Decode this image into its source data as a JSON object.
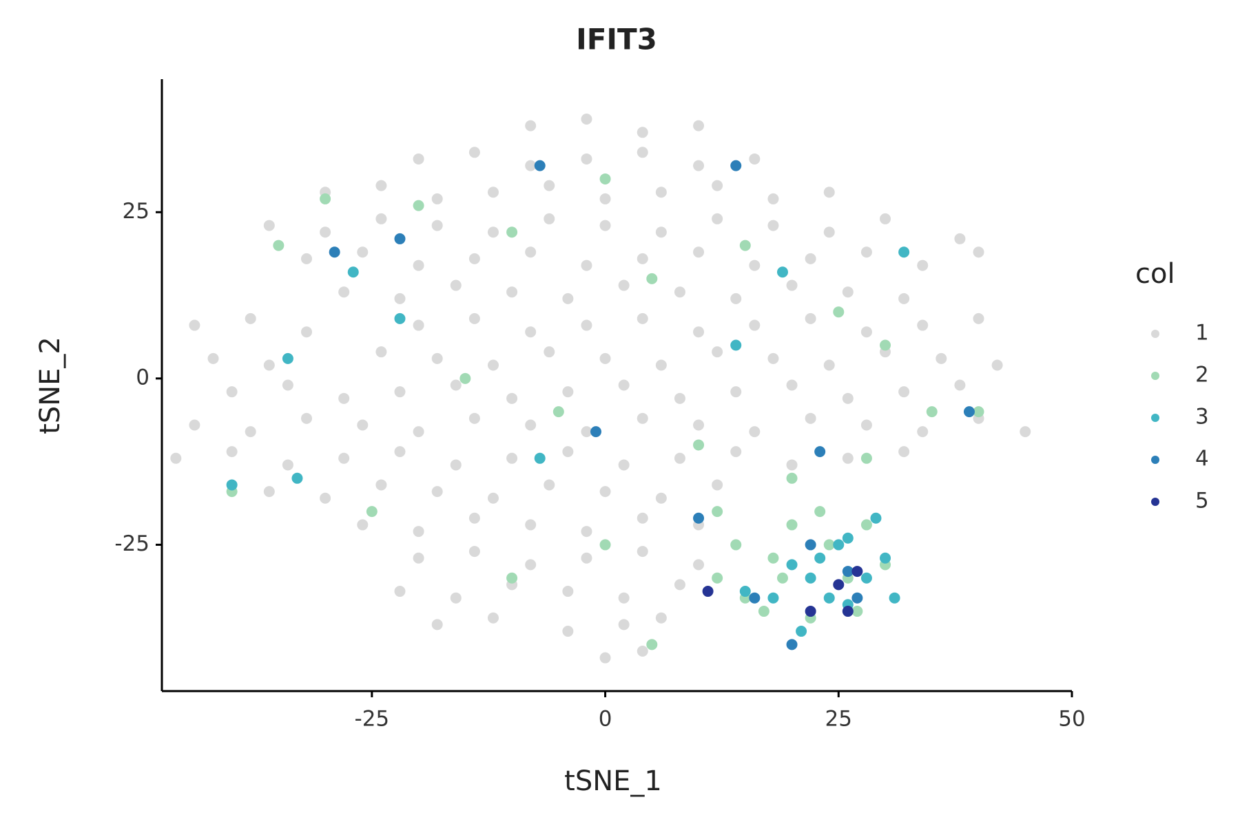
{
  "chart_data": {
    "type": "scatter",
    "title": "IFIT3",
    "x_label": "tSNE_1",
    "y_label": "tSNE_2",
    "legend_title": "col",
    "legend": "right",
    "xlim": [
      -47.5,
      50
    ],
    "ylim": [
      -47,
      45
    ],
    "xticks": [
      -25,
      0,
      25,
      50
    ],
    "yticks": [
      -25,
      0,
      25
    ],
    "grid": false,
    "series": [
      {
        "name": "1",
        "color": "#d9d9d9",
        "x": [
          -8,
          -2,
          4,
          10,
          -20,
          -14,
          -8,
          -2,
          4,
          10,
          16,
          -30,
          -24,
          -18,
          -12,
          -6,
          0,
          6,
          12,
          18,
          24,
          -36,
          -30,
          -24,
          -18,
          -12,
          -6,
          0,
          6,
          12,
          18,
          24,
          30,
          38,
          -32,
          -26,
          -20,
          -14,
          -8,
          -2,
          4,
          10,
          16,
          22,
          28,
          34,
          40,
          -28,
          -22,
          -16,
          -10,
          -4,
          2,
          8,
          14,
          20,
          26,
          32,
          -44,
          -38,
          -32,
          -20,
          -14,
          -8,
          -2,
          4,
          10,
          16,
          22,
          28,
          34,
          40,
          -42,
          -36,
          -24,
          -18,
          -12,
          -6,
          0,
          6,
          12,
          18,
          24,
          30,
          36,
          42,
          -40,
          -34,
          -28,
          -22,
          -16,
          -10,
          -4,
          2,
          8,
          14,
          20,
          26,
          32,
          38,
          -44,
          -38,
          -32,
          -26,
          -20,
          -14,
          -8,
          -2,
          4,
          10,
          16,
          22,
          28,
          34,
          40,
          45,
          -46,
          -40,
          -34,
          -28,
          -22,
          -16,
          -10,
          -4,
          2,
          8,
          14,
          20,
          26,
          32,
          -36,
          -30,
          -24,
          -18,
          -12,
          -6,
          0,
          6,
          12,
          -26,
          -20,
          -14,
          -8,
          -2,
          4,
          10,
          -20,
          -14,
          -8,
          -2,
          4,
          10,
          -22,
          -16,
          -10,
          -4,
          2,
          8,
          -18,
          -12,
          -4,
          2,
          6,
          0,
          4
        ],
        "values": [
          38,
          39,
          37,
          38,
          33,
          34,
          32,
          33,
          34,
          32,
          33,
          28,
          29,
          27,
          28,
          29,
          27,
          28,
          29,
          27,
          28,
          23,
          22,
          24,
          23,
          22,
          24,
          23,
          22,
          24,
          23,
          22,
          24,
          21,
          18,
          19,
          17,
          18,
          19,
          17,
          18,
          19,
          17,
          18,
          19,
          17,
          19,
          13,
          12,
          14,
          13,
          12,
          14,
          13,
          12,
          14,
          13,
          12,
          8,
          9,
          7,
          8,
          9,
          7,
          8,
          9,
          7,
          8,
          9,
          7,
          8,
          9,
          3,
          2,
          4,
          3,
          2,
          4,
          3,
          2,
          4,
          3,
          2,
          4,
          3,
          2,
          -2,
          -1,
          -3,
          -2,
          -1,
          -3,
          -2,
          -1,
          -3,
          -2,
          -1,
          -3,
          -2,
          -1,
          -7,
          -8,
          -6,
          -7,
          -8,
          -6,
          -7,
          -8,
          -6,
          -7,
          -8,
          -6,
          -7,
          -8,
          -6,
          -8,
          -12,
          -11,
          -13,
          -12,
          -11,
          -13,
          -12,
          -11,
          -13,
          -12,
          -11,
          -13,
          -12,
          -11,
          -17,
          -18,
          -16,
          -17,
          -18,
          -16,
          -17,
          -18,
          -16,
          -22,
          -23,
          -21,
          -22,
          -23,
          -21,
          -22,
          -27,
          -26,
          -28,
          -27,
          -26,
          -28,
          -32,
          -33,
          -31,
          -32,
          -33,
          -31,
          -37,
          -36,
          -38,
          -37,
          -36,
          -42,
          -41
        ]
      },
      {
        "name": "2",
        "color": "#a1dab4",
        "x": [
          -35,
          -30,
          -20,
          -10,
          0,
          5,
          15,
          25,
          30,
          -15,
          -5,
          10,
          20,
          28,
          35,
          -40,
          -25,
          -10,
          0,
          5,
          12,
          15,
          18,
          20,
          22,
          24,
          26,
          28,
          30,
          14,
          17,
          19,
          23,
          27,
          12,
          40
        ],
        "values": [
          20,
          27,
          26,
          22,
          30,
          15,
          20,
          10,
          5,
          0,
          -5,
          -10,
          -15,
          -12,
          -5,
          -17,
          -20,
          -30,
          -25,
          -40,
          -30,
          -33,
          -27,
          -22,
          -36,
          -25,
          -30,
          -22,
          -28,
          -25,
          -35,
          -30,
          -20,
          -35,
          -20,
          -5
        ]
      },
      {
        "name": "3",
        "color": "#41b6c4",
        "x": [
          -40,
          -33,
          -27,
          -22,
          -7,
          25,
          22,
          24,
          26,
          28,
          30,
          20,
          18,
          15,
          29,
          31,
          21,
          23,
          26,
          14,
          19,
          -34,
          32
        ],
        "values": [
          -16,
          -15,
          16,
          9,
          -12,
          -25,
          -30,
          -33,
          -34,
          -30,
          -27,
          -28,
          -33,
          -32,
          -21,
          -33,
          -38,
          -27,
          -24,
          5,
          16,
          3,
          19
        ]
      },
      {
        "name": "4",
        "color": "#2c7fb8",
        "x": [
          -7,
          -29,
          -22,
          14,
          23,
          22,
          26,
          27,
          20,
          16,
          10,
          39,
          -1
        ],
        "values": [
          32,
          19,
          21,
          32,
          -11,
          -25,
          -29,
          -33,
          -40,
          -33,
          -21,
          -5,
          -8
        ]
      },
      {
        "name": "5",
        "color": "#253494",
        "x": [
          26,
          25,
          27,
          22,
          11
        ],
        "values": [
          -35,
          -31,
          -29,
          -35,
          -32
        ]
      }
    ]
  }
}
